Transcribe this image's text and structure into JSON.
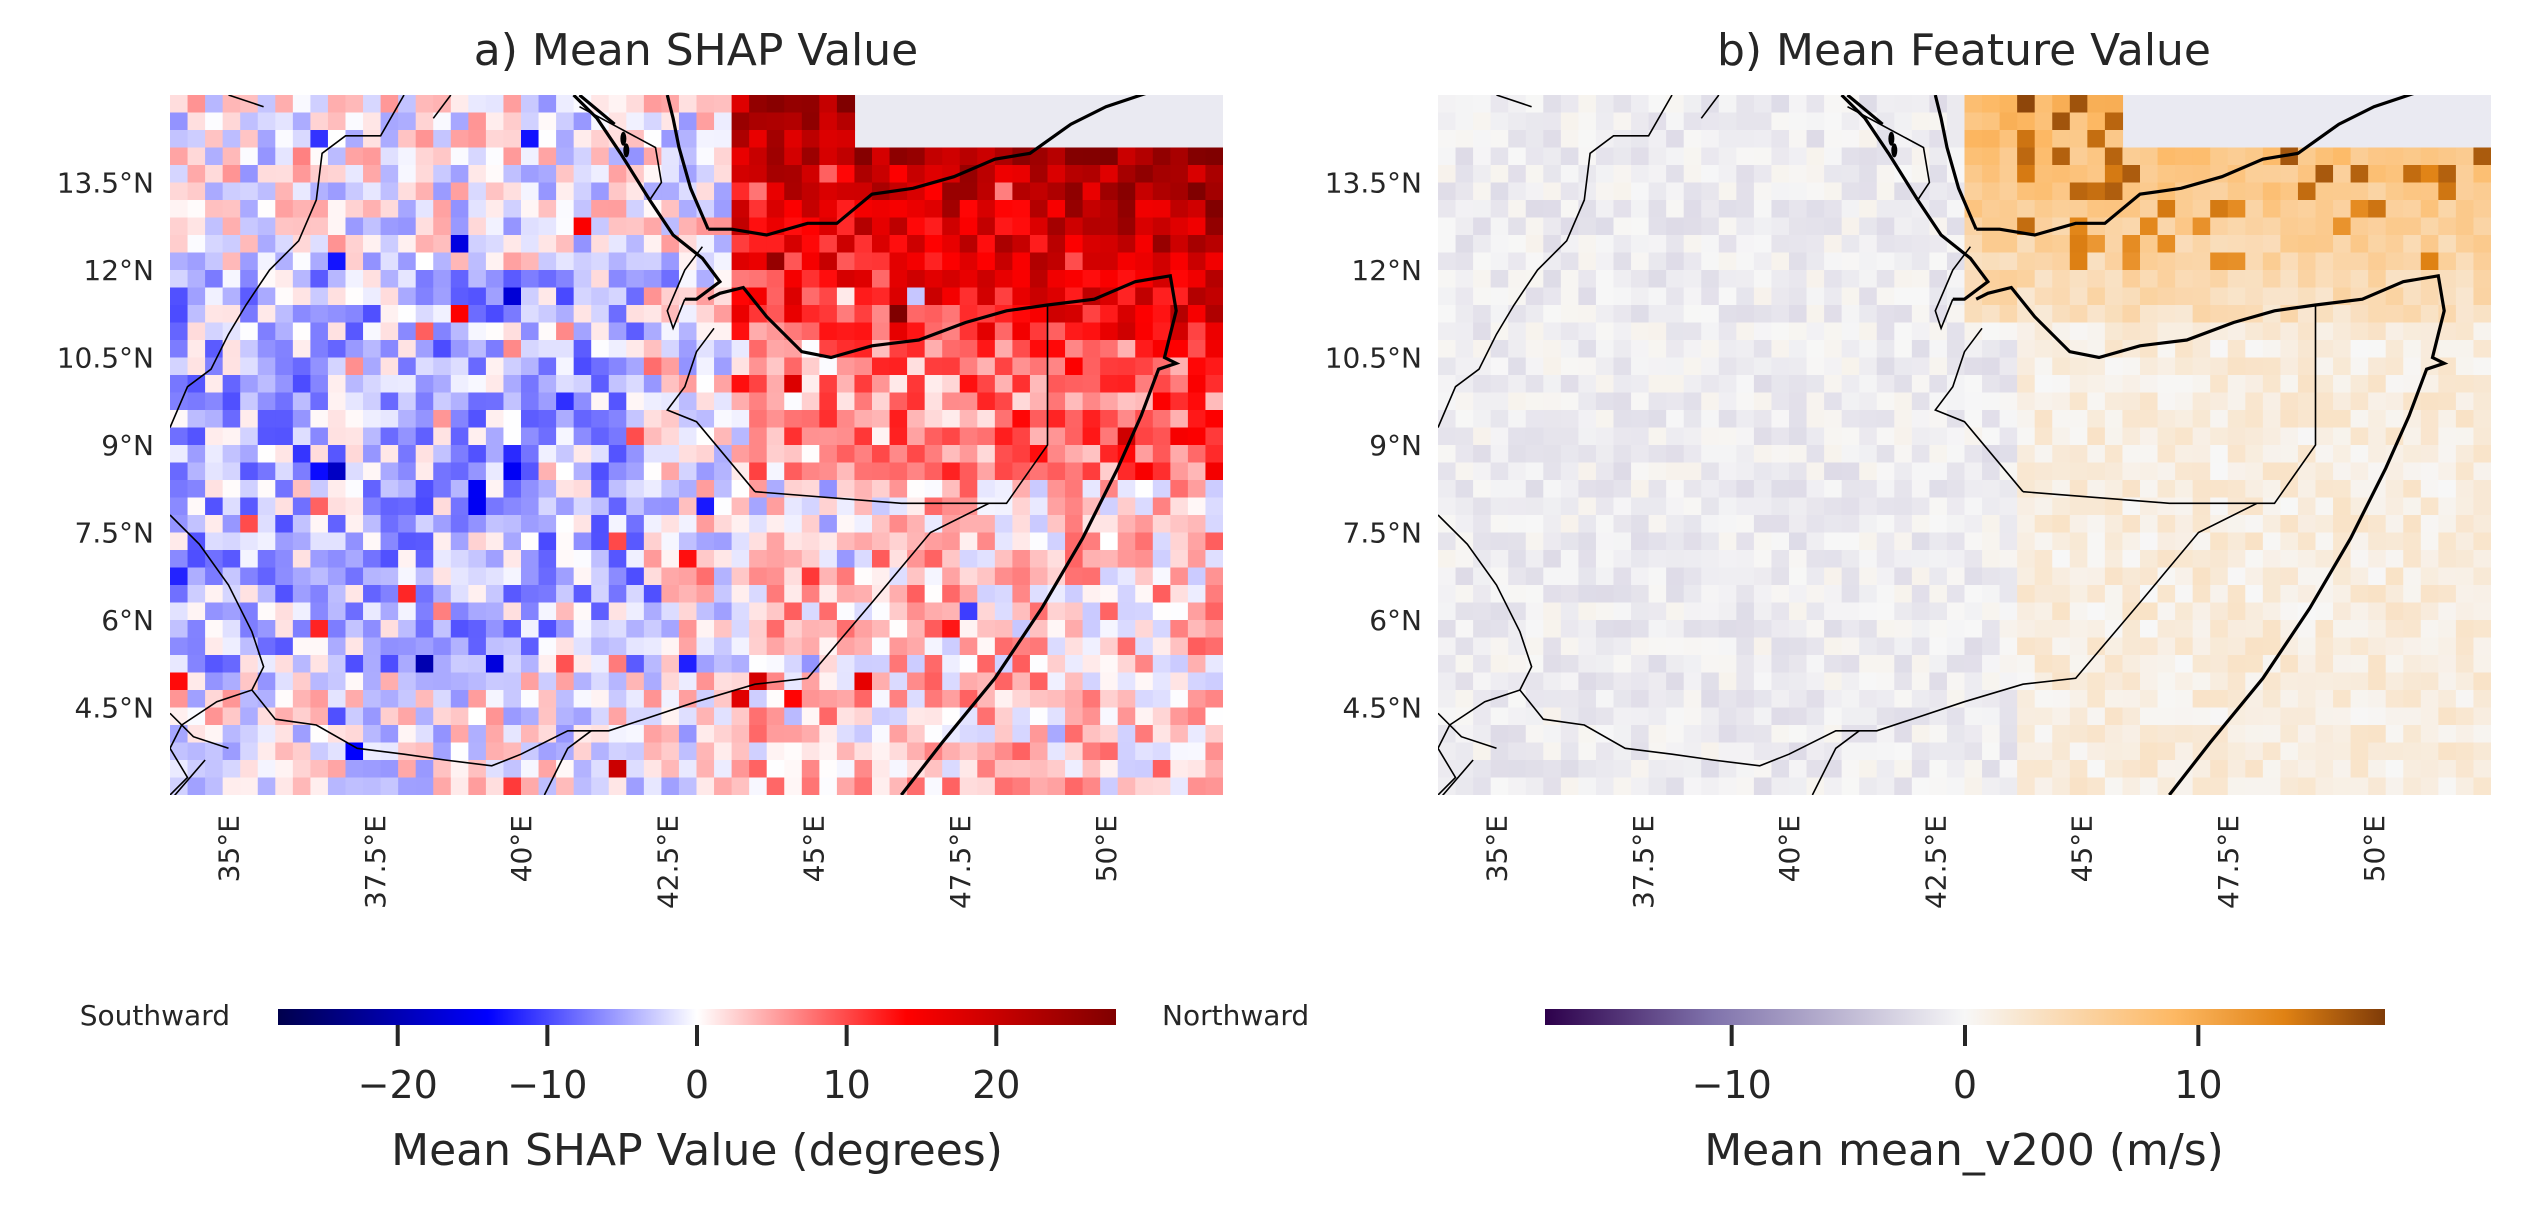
{
  "panels": [
    {
      "id": "shap",
      "title": "a) Mean SHAP Value",
      "cmap": "seismic",
      "lat_ticks": [
        {
          "value": 13.5,
          "label": "13.5°N"
        },
        {
          "value": 12,
          "label": "12°N"
        },
        {
          "value": 10.5,
          "label": "10.5°N"
        },
        {
          "value": 9,
          "label": "9°N"
        },
        {
          "value": 7.5,
          "label": "7.5°N"
        },
        {
          "value": 6,
          "label": "6°N"
        },
        {
          "value": 4.5,
          "label": "4.5°N"
        }
      ],
      "lon_ticks": [
        {
          "value": 35,
          "label": "35°E"
        },
        {
          "value": 37.5,
          "label": "37.5°E"
        },
        {
          "value": 40,
          "label": "40°E"
        },
        {
          "value": 42.5,
          "label": "42.5°E"
        },
        {
          "value": 45,
          "label": "45°E"
        },
        {
          "value": 47.5,
          "label": "47.5°E"
        },
        {
          "value": 50,
          "label": "50°E"
        }
      ],
      "colorbar": {
        "label": "Mean SHAP Value (degrees)",
        "min": -28,
        "max": 28,
        "ticks": [
          {
            "value": -20,
            "label": "−20"
          },
          {
            "value": -10,
            "label": "−10"
          },
          {
            "value": 0,
            "label": "0"
          },
          {
            "value": 10,
            "label": "10"
          },
          {
            "value": 20,
            "label": "20"
          }
        ],
        "left_label": "Southward",
        "right_label": "Northward"
      }
    },
    {
      "id": "feature",
      "title": "b) Mean Feature Value",
      "cmap": "PuOr_r",
      "lat_ticks": [
        {
          "value": 13.5,
          "label": "13.5°N"
        },
        {
          "value": 12,
          "label": "12°N"
        },
        {
          "value": 10.5,
          "label": "10.5°N"
        },
        {
          "value": 9,
          "label": "9°N"
        },
        {
          "value": 7.5,
          "label": "7.5°N"
        },
        {
          "value": 6,
          "label": "6°N"
        },
        {
          "value": 4.5,
          "label": "4.5°N"
        }
      ],
      "lon_ticks": [
        {
          "value": 35,
          "label": "35°E"
        },
        {
          "value": 37.5,
          "label": "37.5°E"
        },
        {
          "value": 40,
          "label": "40°E"
        },
        {
          "value": 42.5,
          "label": "42.5°E"
        },
        {
          "value": 45,
          "label": "45°E"
        },
        {
          "value": 47.5,
          "label": "47.5°E"
        },
        {
          "value": 50,
          "label": "50°E"
        }
      ],
      "colorbar": {
        "label": "Mean mean_v200 (m/s)",
        "min": -18,
        "max": 18,
        "ticks": [
          {
            "value": -10,
            "label": "−10"
          },
          {
            "value": 0,
            "label": "0"
          },
          {
            "value": 10,
            "label": "10"
          }
        ],
        "left_label": "",
        "right_label": ""
      }
    }
  ],
  "map_extent": {
    "lon_min": 34,
    "lon_max": 52,
    "lat_min": 3,
    "lat_max": 15
  }
}
